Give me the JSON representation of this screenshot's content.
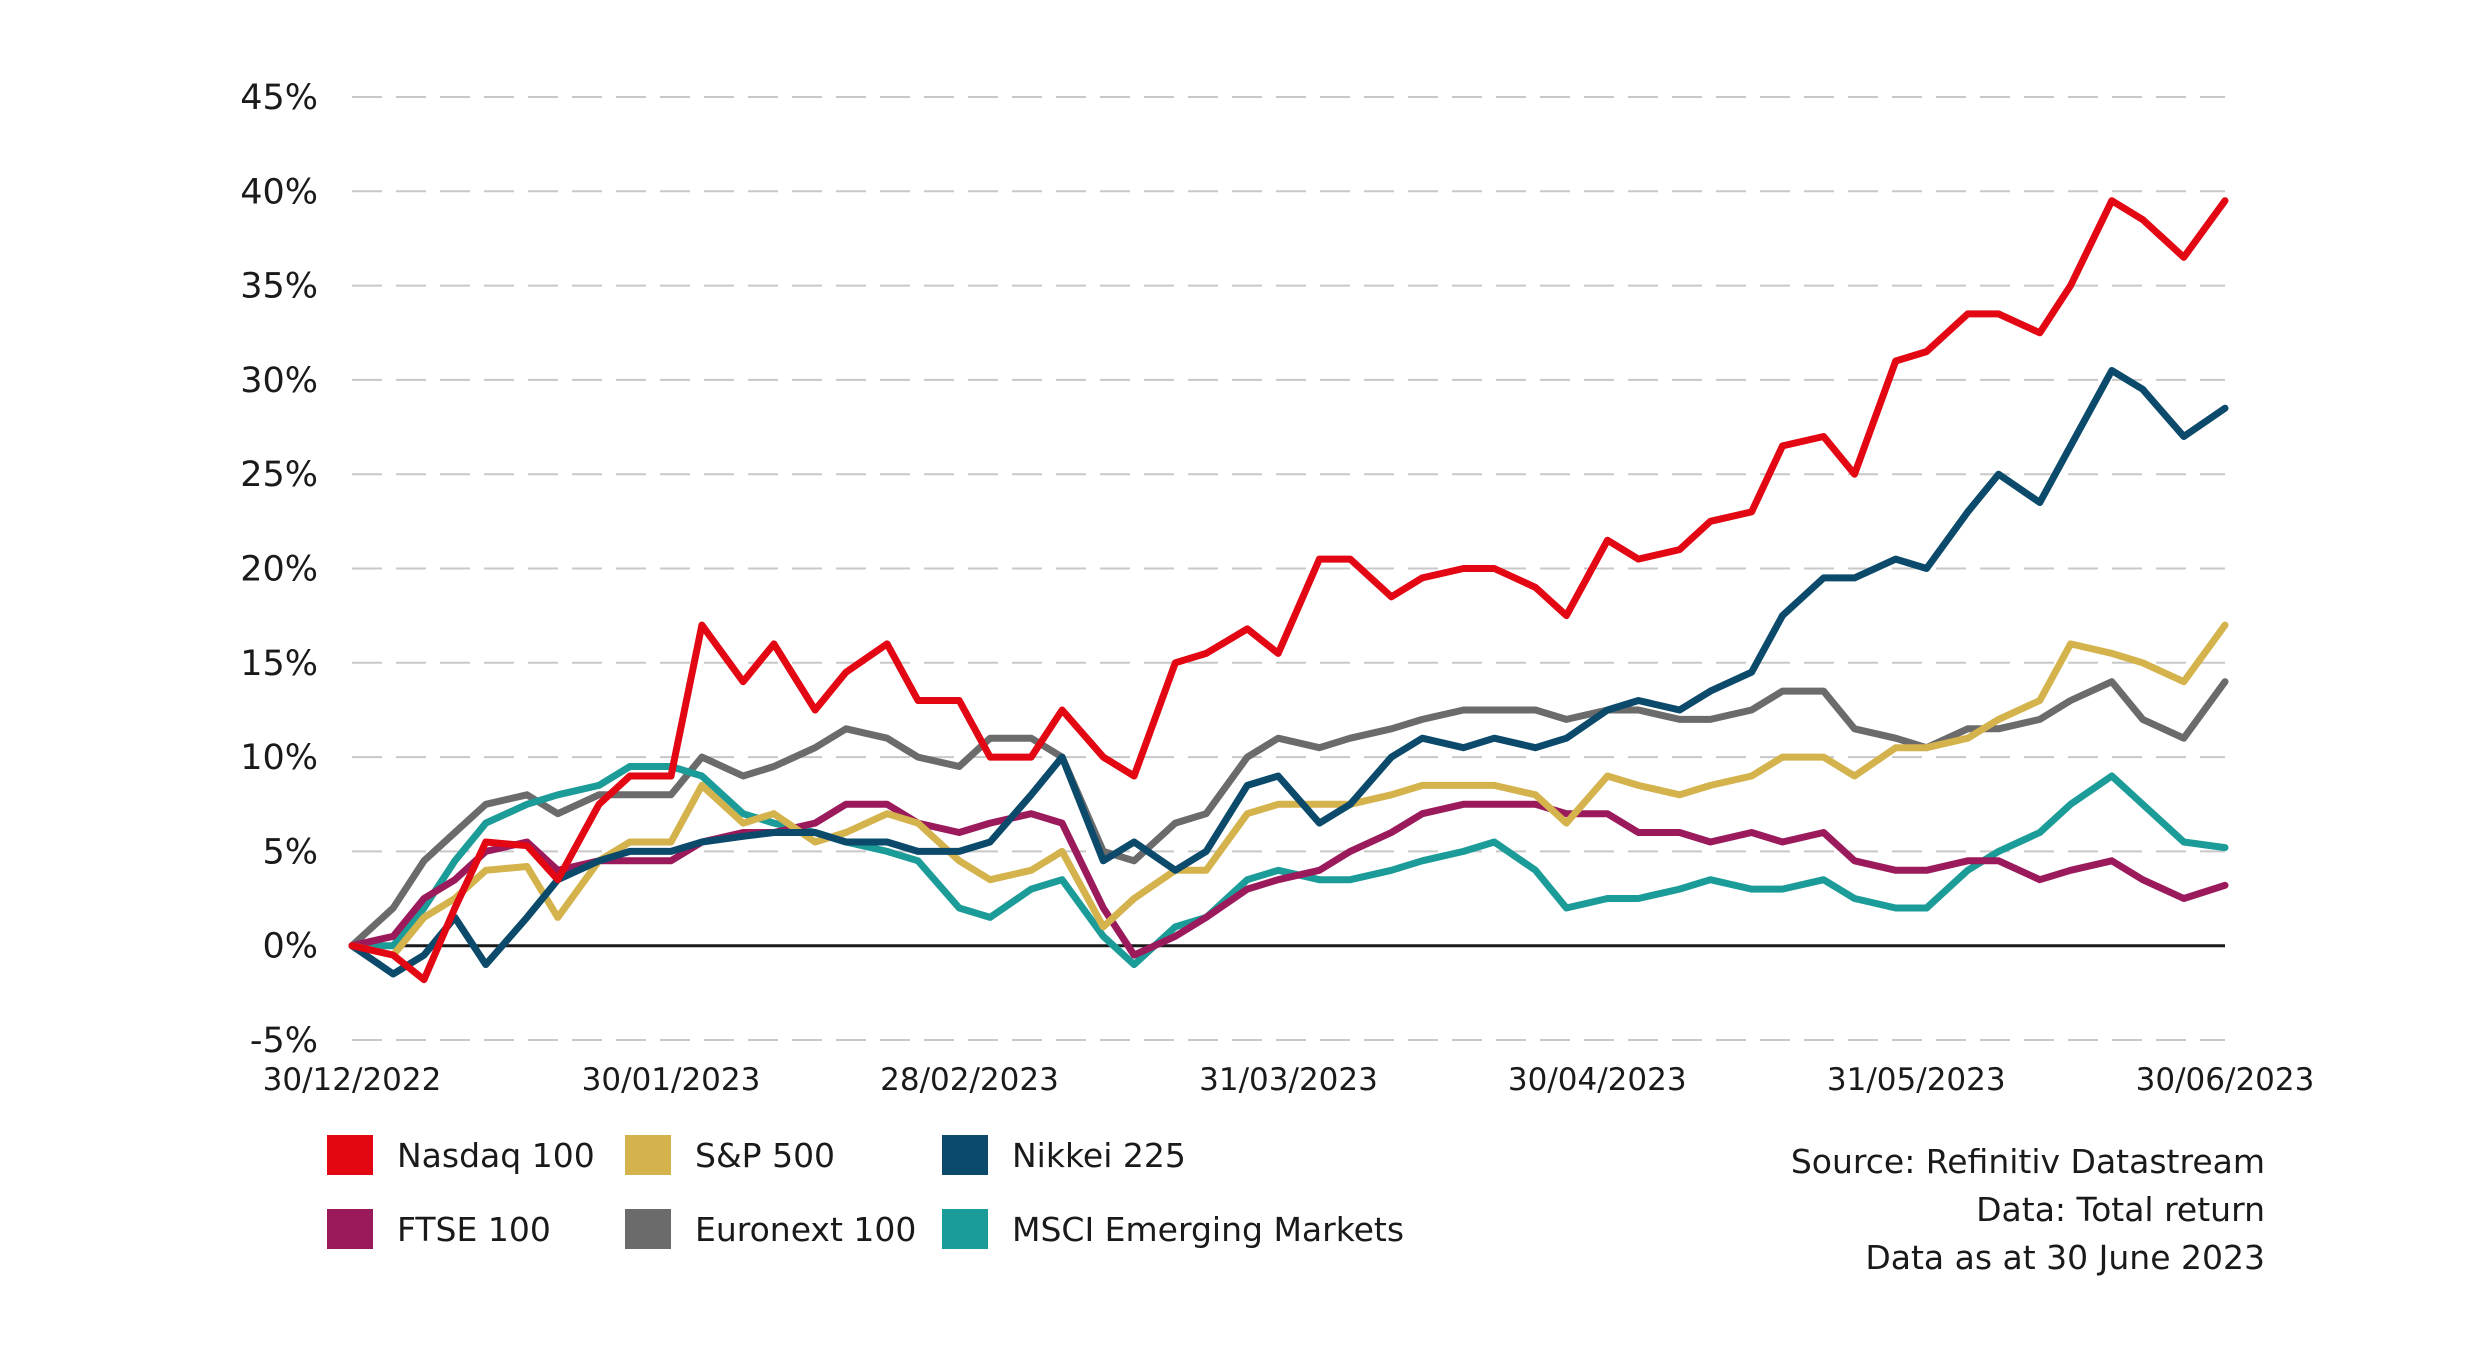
{
  "chart_data": {
    "type": "line",
    "title": "",
    "xlabel": "",
    "ylabel": "",
    "ylim": [
      -5,
      45
    ],
    "y_ticks": [
      "45%",
      "40%",
      "35%",
      "30%",
      "25%",
      "20%",
      "15%",
      "10%",
      "5%",
      "0%",
      "-5%"
    ],
    "y_tick_values": [
      45,
      40,
      35,
      30,
      25,
      20,
      15,
      10,
      5,
      0,
      -5
    ],
    "x_ticks": [
      "30/12/2022",
      "30/01/2023",
      "28/02/2023",
      "31/03/2023",
      "30/04/2023",
      "31/05/2023",
      "30/06/2023"
    ],
    "x_tick_dates": [
      "2022-12-30",
      "2023-01-30",
      "2023-02-28",
      "2023-03-31",
      "2023-04-30",
      "2023-05-31",
      "2023-06-30"
    ],
    "grid": "horizontal dashed",
    "legend_position": "bottom-left",
    "series": [
      {
        "name": "Nasdaq 100",
        "color": "#e30613",
        "x": [
          "2022-12-30",
          "2023-01-03",
          "2023-01-06",
          "2023-01-09",
          "2023-01-12",
          "2023-01-16",
          "2023-01-19",
          "2023-01-23",
          "2023-01-26",
          "2023-01-30",
          "2023-02-02",
          "2023-02-06",
          "2023-02-09",
          "2023-02-13",
          "2023-02-16",
          "2023-02-20",
          "2023-02-23",
          "2023-02-27",
          "2023-03-02",
          "2023-03-06",
          "2023-03-09",
          "2023-03-13",
          "2023-03-16",
          "2023-03-20",
          "2023-03-23",
          "2023-03-27",
          "2023-03-30",
          "2023-04-03",
          "2023-04-06",
          "2023-04-10",
          "2023-04-13",
          "2023-04-17",
          "2023-04-20",
          "2023-04-24",
          "2023-04-27",
          "2023-05-01",
          "2023-05-04",
          "2023-05-08",
          "2023-05-11",
          "2023-05-15",
          "2023-05-18",
          "2023-05-22",
          "2023-05-25",
          "2023-05-29",
          "2023-06-01",
          "2023-06-05",
          "2023-06-08",
          "2023-06-12",
          "2023-06-15",
          "2023-06-19",
          "2023-06-22",
          "2023-06-26",
          "2023-06-30"
        ],
        "values": [
          0,
          -0.5,
          -1.8,
          2.0,
          5.5,
          5.3,
          3.5,
          7.5,
          9.0,
          9.0,
          17.0,
          14.0,
          16.0,
          12.5,
          14.5,
          16.0,
          13.0,
          13.0,
          10.0,
          10.0,
          12.5,
          10.0,
          9.0,
          15.0,
          15.5,
          16.8,
          15.5,
          20.5,
          20.5,
          18.5,
          19.5,
          20.0,
          20.0,
          19.0,
          17.5,
          21.5,
          20.5,
          21.0,
          22.5,
          23.0,
          26.5,
          27.0,
          25.0,
          31.0,
          31.5,
          33.5,
          33.5,
          32.5,
          35.0,
          39.5,
          38.5,
          36.5,
          39.5
        ]
      },
      {
        "name": "S&P 500",
        "color": "#d4b24c",
        "x": [
          "2022-12-30",
          "2023-01-03",
          "2023-01-06",
          "2023-01-09",
          "2023-01-12",
          "2023-01-16",
          "2023-01-19",
          "2023-01-23",
          "2023-01-26",
          "2023-01-30",
          "2023-02-02",
          "2023-02-06",
          "2023-02-09",
          "2023-02-13",
          "2023-02-16",
          "2023-02-20",
          "2023-02-23",
          "2023-02-27",
          "2023-03-02",
          "2023-03-06",
          "2023-03-09",
          "2023-03-13",
          "2023-03-16",
          "2023-03-20",
          "2023-03-23",
          "2023-03-27",
          "2023-03-30",
          "2023-04-03",
          "2023-04-06",
          "2023-04-10",
          "2023-04-13",
          "2023-04-17",
          "2023-04-20",
          "2023-04-24",
          "2023-04-27",
          "2023-05-01",
          "2023-05-04",
          "2023-05-08",
          "2023-05-11",
          "2023-05-15",
          "2023-05-18",
          "2023-05-22",
          "2023-05-25",
          "2023-05-29",
          "2023-06-01",
          "2023-06-05",
          "2023-06-08",
          "2023-06-12",
          "2023-06-15",
          "2023-06-19",
          "2023-06-22",
          "2023-06-26",
          "2023-06-30"
        ],
        "values": [
          0,
          -0.5,
          1.5,
          2.5,
          4.0,
          4.2,
          1.5,
          4.5,
          5.5,
          5.5,
          8.5,
          6.5,
          7.0,
          5.5,
          6.0,
          7.0,
          6.5,
          4.5,
          3.5,
          4.0,
          5.0,
          1.0,
          2.5,
          4.0,
          4.0,
          7.0,
          7.5,
          7.5,
          7.5,
          8.0,
          8.5,
          8.5,
          8.5,
          8.0,
          6.5,
          9.0,
          8.5,
          8.0,
          8.5,
          9.0,
          10.0,
          10.0,
          9.0,
          10.5,
          10.5,
          11.0,
          12.0,
          13.0,
          16.0,
          15.5,
          15.0,
          14.0,
          17.0
        ]
      },
      {
        "name": "Nikkei 225",
        "color": "#0b4a6b",
        "x": [
          "2022-12-30",
          "2023-01-03",
          "2023-01-06",
          "2023-01-09",
          "2023-01-12",
          "2023-01-16",
          "2023-01-19",
          "2023-01-23",
          "2023-01-26",
          "2023-01-30",
          "2023-02-02",
          "2023-02-06",
          "2023-02-09",
          "2023-02-13",
          "2023-02-16",
          "2023-02-20",
          "2023-02-23",
          "2023-02-27",
          "2023-03-02",
          "2023-03-06",
          "2023-03-09",
          "2023-03-13",
          "2023-03-16",
          "2023-03-20",
          "2023-03-23",
          "2023-03-27",
          "2023-03-30",
          "2023-04-03",
          "2023-04-06",
          "2023-04-10",
          "2023-04-13",
          "2023-04-17",
          "2023-04-20",
          "2023-04-24",
          "2023-04-27",
          "2023-05-01",
          "2023-05-04",
          "2023-05-08",
          "2023-05-11",
          "2023-05-15",
          "2023-05-18",
          "2023-05-22",
          "2023-05-25",
          "2023-05-29",
          "2023-06-01",
          "2023-06-05",
          "2023-06-08",
          "2023-06-12",
          "2023-06-15",
          "2023-06-19",
          "2023-06-22",
          "2023-06-26",
          "2023-06-30"
        ],
        "values": [
          0,
          -1.5,
          -0.5,
          1.5,
          -1.0,
          1.5,
          3.5,
          4.5,
          5.0,
          5.0,
          5.5,
          5.8,
          6.0,
          6.0,
          5.5,
          5.5,
          5.0,
          5.0,
          5.5,
          8.0,
          10.0,
          4.5,
          5.5,
          4.0,
          5.0,
          8.5,
          9.0,
          6.5,
          7.5,
          10.0,
          11.0,
          10.5,
          11.0,
          10.5,
          11.0,
          12.5,
          13.0,
          12.5,
          13.5,
          14.5,
          17.5,
          19.5,
          19.5,
          20.5,
          20.0,
          23.0,
          25.0,
          23.5,
          26.5,
          30.5,
          29.5,
          27.0,
          28.5
        ]
      },
      {
        "name": "FTSE 100",
        "color": "#9b1a5c",
        "x": [
          "2022-12-30",
          "2023-01-03",
          "2023-01-06",
          "2023-01-09",
          "2023-01-12",
          "2023-01-16",
          "2023-01-19",
          "2023-01-23",
          "2023-01-26",
          "2023-01-30",
          "2023-02-02",
          "2023-02-06",
          "2023-02-09",
          "2023-02-13",
          "2023-02-16",
          "2023-02-20",
          "2023-02-23",
          "2023-02-27",
          "2023-03-02",
          "2023-03-06",
          "2023-03-09",
          "2023-03-13",
          "2023-03-16",
          "2023-03-20",
          "2023-03-23",
          "2023-03-27",
          "2023-03-30",
          "2023-04-03",
          "2023-04-06",
          "2023-04-10",
          "2023-04-13",
          "2023-04-17",
          "2023-04-20",
          "2023-04-24",
          "2023-04-27",
          "2023-05-01",
          "2023-05-04",
          "2023-05-08",
          "2023-05-11",
          "2023-05-15",
          "2023-05-18",
          "2023-05-22",
          "2023-05-25",
          "2023-05-29",
          "2023-06-01",
          "2023-06-05",
          "2023-06-08",
          "2023-06-12",
          "2023-06-15",
          "2023-06-19",
          "2023-06-22",
          "2023-06-26",
          "2023-06-30"
        ],
        "values": [
          0,
          0.5,
          2.5,
          3.5,
          5.0,
          5.5,
          4.0,
          4.5,
          4.5,
          4.5,
          5.5,
          6.0,
          6.0,
          6.5,
          7.5,
          7.5,
          6.5,
          6.0,
          6.5,
          7.0,
          6.5,
          2.0,
          -0.5,
          0.5,
          1.5,
          3.0,
          3.5,
          4.0,
          5.0,
          6.0,
          7.0,
          7.5,
          7.5,
          7.5,
          7.0,
          7.0,
          6.0,
          6.0,
          5.5,
          6.0,
          5.5,
          6.0,
          4.5,
          4.0,
          4.0,
          4.5,
          4.5,
          3.5,
          4.0,
          4.5,
          3.5,
          2.5,
          3.2
        ]
      },
      {
        "name": "Euronext 100",
        "color": "#6b6b6b",
        "x": [
          "2022-12-30",
          "2023-01-03",
          "2023-01-06",
          "2023-01-09",
          "2023-01-12",
          "2023-01-16",
          "2023-01-19",
          "2023-01-23",
          "2023-01-26",
          "2023-01-30",
          "2023-02-02",
          "2023-02-06",
          "2023-02-09",
          "2023-02-13",
          "2023-02-16",
          "2023-02-20",
          "2023-02-23",
          "2023-02-27",
          "2023-03-02",
          "2023-03-06",
          "2023-03-09",
          "2023-03-13",
          "2023-03-16",
          "2023-03-20",
          "2023-03-23",
          "2023-03-27",
          "2023-03-30",
          "2023-04-03",
          "2023-04-06",
          "2023-04-10",
          "2023-04-13",
          "2023-04-17",
          "2023-04-20",
          "2023-04-24",
          "2023-04-27",
          "2023-05-01",
          "2023-05-04",
          "2023-05-08",
          "2023-05-11",
          "2023-05-15",
          "2023-05-18",
          "2023-05-22",
          "2023-05-25",
          "2023-05-29",
          "2023-06-01",
          "2023-06-05",
          "2023-06-08",
          "2023-06-12",
          "2023-06-15",
          "2023-06-19",
          "2023-06-22",
          "2023-06-26",
          "2023-06-30"
        ],
        "values": [
          0,
          2.0,
          4.5,
          6.0,
          7.5,
          8.0,
          7.0,
          8.0,
          8.0,
          8.0,
          10.0,
          9.0,
          9.5,
          10.5,
          11.5,
          11.0,
          10.0,
          9.5,
          11.0,
          11.0,
          10.0,
          5.0,
          4.5,
          6.5,
          7.0,
          10.0,
          11.0,
          10.5,
          11.0,
          11.5,
          12.0,
          12.5,
          12.5,
          12.5,
          12.0,
          12.5,
          12.5,
          12.0,
          12.0,
          12.5,
          13.5,
          13.5,
          11.5,
          11.0,
          10.5,
          11.5,
          11.5,
          12.0,
          13.0,
          14.0,
          12.0,
          11.0,
          14.0
        ]
      },
      {
        "name": "MSCI Emerging Markets",
        "color": "#1c9c98",
        "x": [
          "2022-12-30",
          "2023-01-03",
          "2023-01-06",
          "2023-01-09",
          "2023-01-12",
          "2023-01-16",
          "2023-01-19",
          "2023-01-23",
          "2023-01-26",
          "2023-01-30",
          "2023-02-02",
          "2023-02-06",
          "2023-02-09",
          "2023-02-13",
          "2023-02-16",
          "2023-02-20",
          "2023-02-23",
          "2023-02-27",
          "2023-03-02",
          "2023-03-06",
          "2023-03-09",
          "2023-03-13",
          "2023-03-16",
          "2023-03-20",
          "2023-03-23",
          "2023-03-27",
          "2023-03-30",
          "2023-04-03",
          "2023-04-06",
          "2023-04-10",
          "2023-04-13",
          "2023-04-17",
          "2023-04-20",
          "2023-04-24",
          "2023-04-27",
          "2023-05-01",
          "2023-05-04",
          "2023-05-08",
          "2023-05-11",
          "2023-05-15",
          "2023-05-18",
          "2023-05-22",
          "2023-05-25",
          "2023-05-29",
          "2023-06-01",
          "2023-06-05",
          "2023-06-08",
          "2023-06-12",
          "2023-06-15",
          "2023-06-19",
          "2023-06-22",
          "2023-06-26",
          "2023-06-30"
        ],
        "values": [
          0,
          0,
          2.0,
          4.5,
          6.5,
          7.5,
          8.0,
          8.5,
          9.5,
          9.5,
          9.0,
          7.0,
          6.5,
          6.0,
          5.5,
          5.0,
          4.5,
          2.0,
          1.5,
          3.0,
          3.5,
          0.5,
          -1.0,
          1.0,
          1.5,
          3.5,
          4.0,
          3.5,
          3.5,
          4.0,
          4.5,
          5.0,
          5.5,
          4.0,
          2.0,
          2.5,
          2.5,
          3.0,
          3.5,
          3.0,
          3.0,
          3.5,
          2.5,
          2.0,
          2.0,
          4.0,
          5.0,
          6.0,
          7.5,
          9.0,
          7.5,
          5.5,
          5.2
        ]
      }
    ]
  },
  "source": {
    "line1": "Source: Refinitiv Datastream",
    "line2": "Data: Total return",
    "line3": "Data as at 30 June 2023"
  }
}
